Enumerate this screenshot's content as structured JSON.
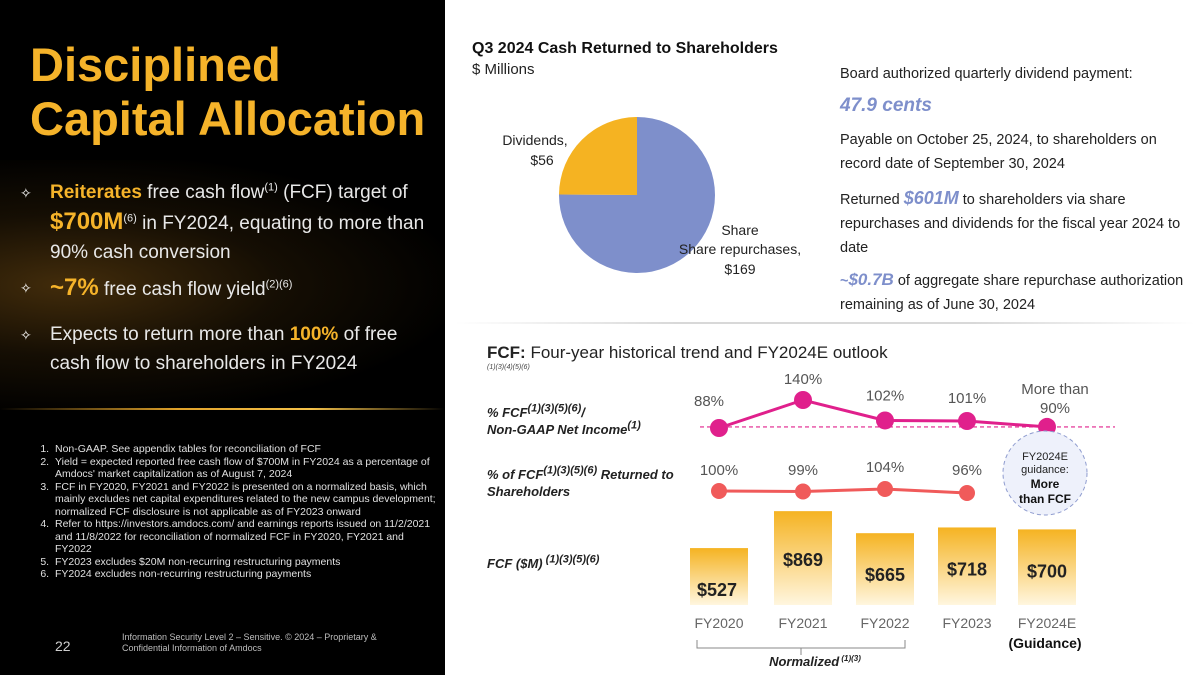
{
  "page": {
    "title": "Disciplined Capital Allocation",
    "page_number": "22",
    "legal": "Information Security Level 2 – Sensitive. © 2024 – Proprietary & Confidential Information of Amdocs"
  },
  "bullets": [
    {
      "lead": "Reiterates",
      "text1": " free cash flow",
      "sup1": "(1)",
      "text2": " (FCF) target of ",
      "value": "$700M",
      "sup2": "(6)",
      "text3": " in FY2024, equating to more than 90% cash conversion"
    },
    {
      "lead": "~7%",
      "text1": " free cash flow yield",
      "sup1": "(2)(6)"
    },
    {
      "text1": "Expects to return more than ",
      "value": "100%",
      "text2": " of free cash flow to shareholders in FY2024"
    }
  ],
  "footnotes": [
    "Non-GAAP. See appendix tables for reconciliation of FCF",
    "Yield = expected reported free cash flow of $700M in FY2024 as a percentage of Amdocs' market capitalization as of August 7, 2024",
    "FCF in FY2020, FY2021 and FY2022 is presented on a normalized basis, which mainly excludes net capital expenditures related to the new campus development; normalized FCF disclosure is not applicable as of FY2023 onward",
    "Refer to https://investors.amdocs.com/ and earnings reports issued on 11/2/2021 and 11/8/2022 for reconciliation of normalized FCF in FY2020, FY2021 and FY2022",
    "FY2023 excludes $20M non-recurring restructuring payments",
    "FY2024 excludes non-recurring restructuring payments"
  ],
  "pie_section": {
    "title": "Q3 2024 Cash Returned to Shareholders",
    "subtitle": "$ Millions"
  },
  "info": {
    "board_text": "Board authorized quarterly dividend payment:",
    "dividend": "47.9 cents",
    "payable": "Payable on October 25, 2024, to shareholders on record date of September 30, 2024",
    "returned_pre": "Returned ",
    "returned_value": "$601M",
    "returned_post": " to shareholders via share repurchases and dividends for the fiscal year 2024 to date",
    "auth_pre": "~",
    "auth_value": "$0.7B",
    "auth_post": " of aggregate share repurchase authorization remaining as of June 30, 2024"
  },
  "fcf_section": {
    "title_bold": "FCF:",
    "title_rest": " Four-year historical trend and FY2024E outlook",
    "notes": "(1)(3)(4)(5)(6)",
    "row1_label": "% FCF",
    "row1_sup": "(1)(3)(5)(6)",
    "row1_label2": "/",
    "row1_label3": "Non-GAAP Net Income",
    "row1_sup2": "(1)",
    "row2_label": "% of FCF",
    "row2_sup": "(1)(3)(5)(6)",
    "row2_label2": " Returned to Shareholders",
    "row3_label": "FCF ($M)",
    "row3_sup": " (1)(3)(5)(6)",
    "guidance_bubble_1": "FY2024E guidance:",
    "guidance_bubble_2": "More than FCF",
    "guidance_label": "(Guidance)",
    "normalized_label": "Normalized",
    "normalized_sup": " (1)(3)"
  },
  "chart_data": [
    {
      "type": "pie",
      "title": "Q3 2024 Cash Returned to Shareholders",
      "subtitle": "$ Millions",
      "labels": [
        "Dividends,",
        "Share repurchases,"
      ],
      "values": [
        56,
        169
      ],
      "value_labels": [
        "$56",
        "$169"
      ],
      "colors": [
        "#f5b322",
        "#7e8fcb"
      ]
    },
    {
      "type": "line",
      "title": "% FCF / Non-GAAP Net Income",
      "categories": [
        "FY2020",
        "FY2021",
        "FY2022",
        "FY2023",
        "FY2024E"
      ],
      "values": [
        88,
        140,
        102,
        101,
        90
      ],
      "labels": [
        "88%",
        "140%",
        "102%",
        "101%",
        "More than 90%"
      ],
      "reference_line": 90,
      "color": "#e0208c"
    },
    {
      "type": "line",
      "title": "% of FCF Returned to Shareholders",
      "categories": [
        "FY2020",
        "FY2021",
        "FY2022",
        "FY2023"
      ],
      "values": [
        100,
        99,
        104,
        96
      ],
      "labels": [
        "100%",
        "99%",
        "104%",
        "96%"
      ],
      "color": "#f05a5a"
    },
    {
      "type": "bar",
      "title": "FCF ($M)",
      "categories": [
        "FY2020",
        "FY2021",
        "FY2022",
        "FY2023",
        "FY2024E"
      ],
      "values": [
        527,
        869,
        665,
        718,
        700
      ],
      "labels": [
        "$527",
        "$869",
        "$665",
        "$718",
        "$700"
      ],
      "color": "#f5b322"
    }
  ]
}
